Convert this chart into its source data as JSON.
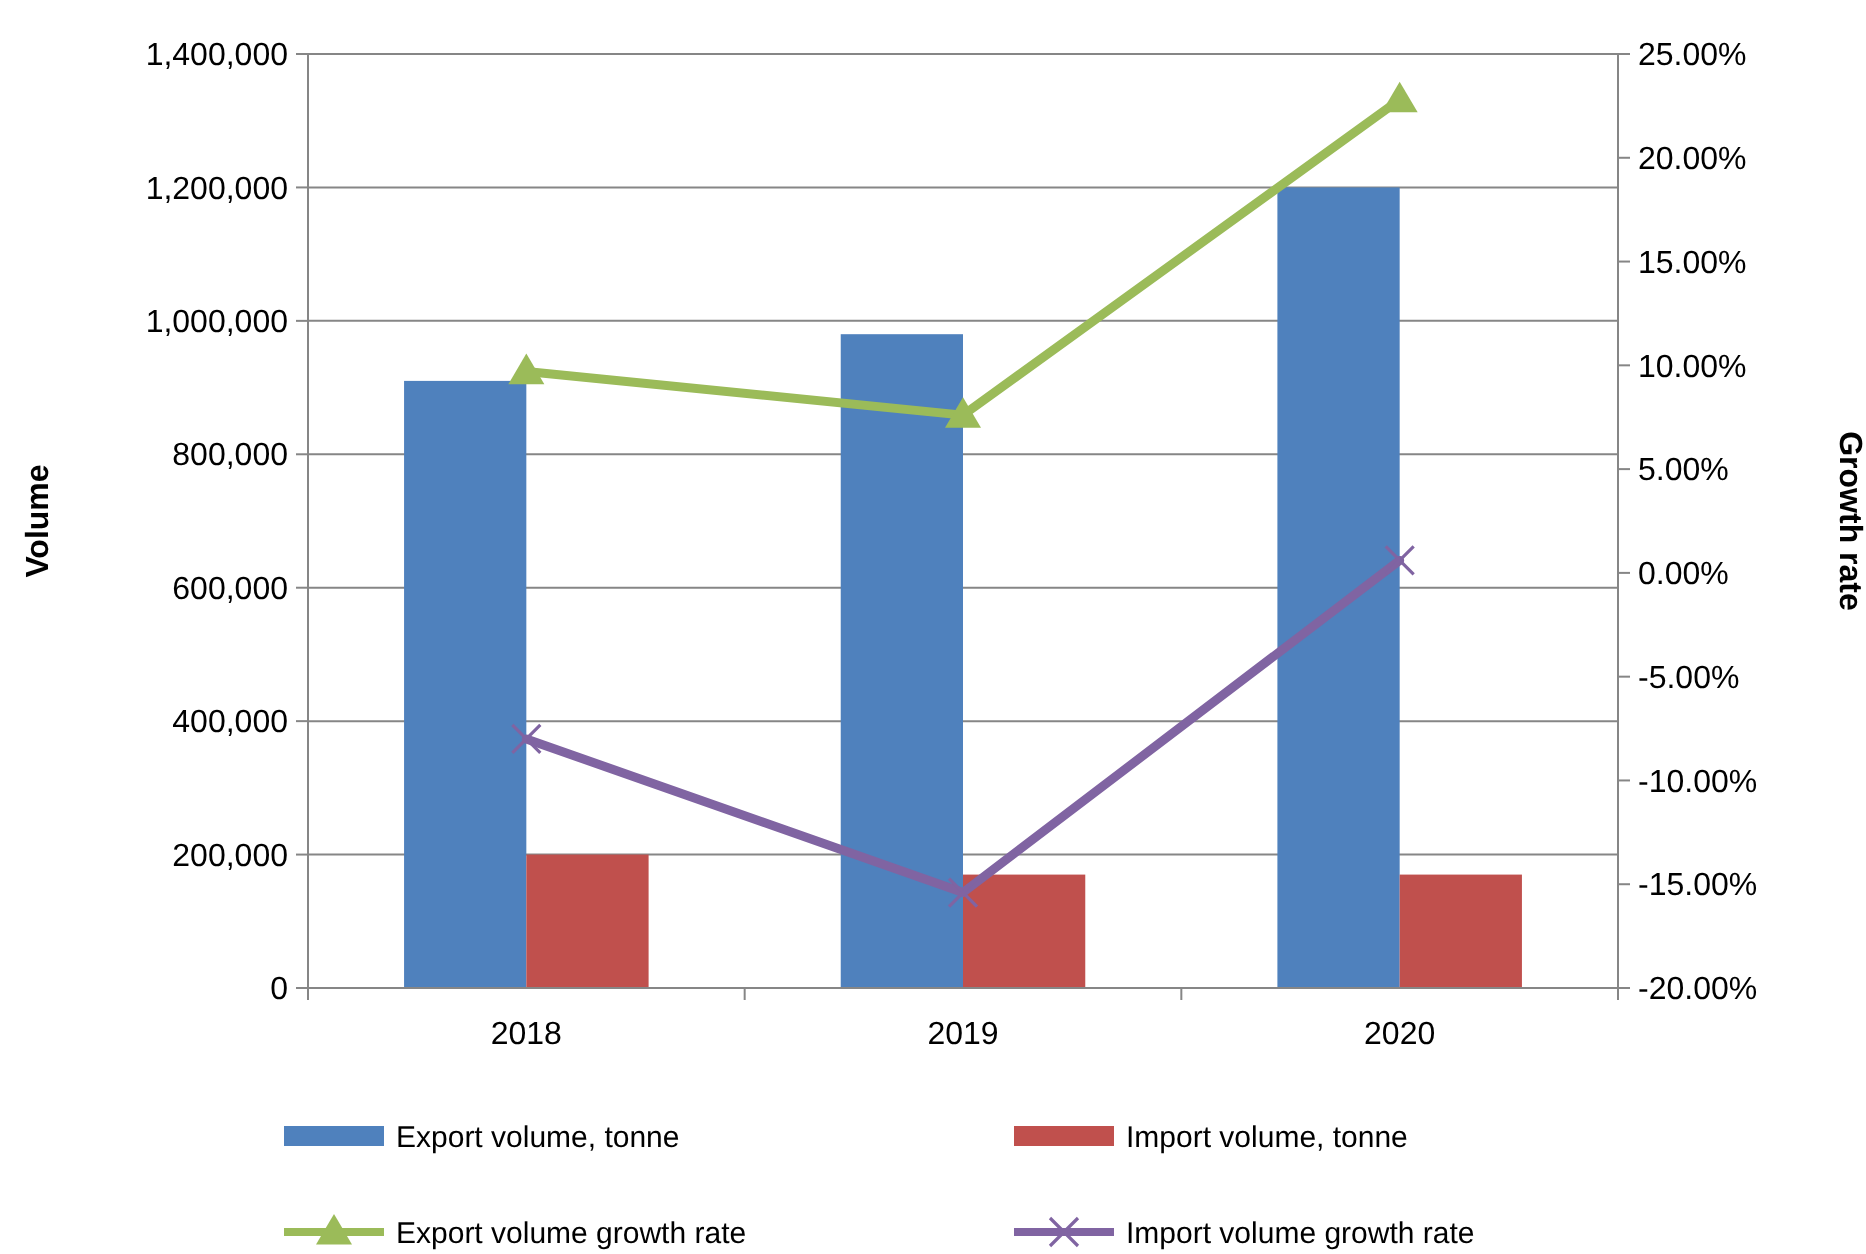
{
  "chart_data": {
    "type": "bar",
    "categories": [
      "2018",
      "2019",
      "2020"
    ],
    "ylabel": "Volume",
    "y2label": "Growth rate",
    "ylim": [
      0,
      1400000
    ],
    "yticks": [
      {
        "value": 0,
        "label": "0"
      },
      {
        "value": 200000,
        "label": "200,000"
      },
      {
        "value": 400000,
        "label": "400,000"
      },
      {
        "value": 600000,
        "label": "600,000"
      },
      {
        "value": 800000,
        "label": "800,000"
      },
      {
        "value": 1000000,
        "label": "1,000,000"
      },
      {
        "value": 1200000,
        "label": "1,200,000"
      },
      {
        "value": 1400000,
        "label": "1,400,000"
      }
    ],
    "y2lim": [
      -20,
      25
    ],
    "y2ticks": [
      {
        "value": -20,
        "label": "-20.00%"
      },
      {
        "value": -15,
        "label": "-15.00%"
      },
      {
        "value": -10,
        "label": "-10.00%"
      },
      {
        "value": -5,
        "label": "-5.00%"
      },
      {
        "value": 0,
        "label": "0.00%"
      },
      {
        "value": 5,
        "label": "5.00%"
      },
      {
        "value": 10,
        "label": "10.00%"
      },
      {
        "value": 15,
        "label": "15.00%"
      },
      {
        "value": 20,
        "label": "20.00%"
      },
      {
        "value": 25,
        "label": "25.00%"
      }
    ],
    "grid": "y",
    "legend": "bottom",
    "series": [
      {
        "name": "Export volume, tonne",
        "color": "#4f81bd",
        "values": [
          910000,
          980000,
          1200000
        ]
      },
      {
        "name": "Import volume, tonne",
        "color": "#c0504d",
        "values": [
          200000,
          170000,
          170000
        ]
      },
      {
        "name": "Export volume growth rate",
        "type": "line",
        "axis": "y2",
        "marker": "triangle",
        "color": "#9bbb59",
        "values": [
          9.7,
          7.6,
          22.8
        ]
      },
      {
        "name": "Import volume growth rate",
        "type": "line",
        "axis": "y2",
        "marker": "cross",
        "color": "#8064a2",
        "values": [
          -8.0,
          -15.4,
          0.6
        ]
      }
    ]
  }
}
